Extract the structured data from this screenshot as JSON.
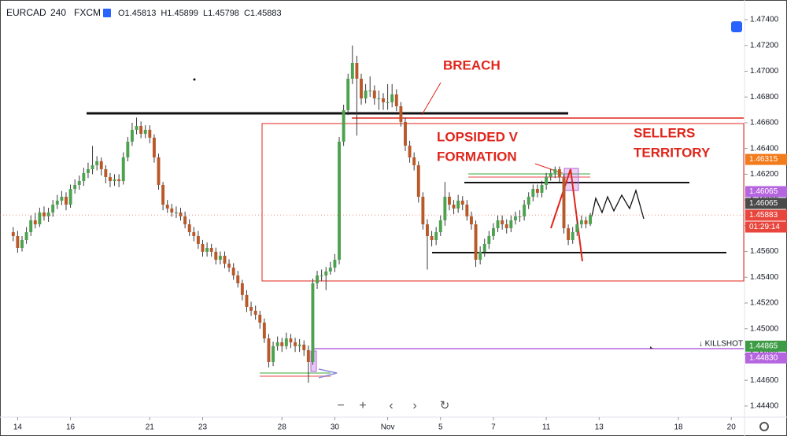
{
  "header": {
    "symbol": "EURCAD",
    "interval": "240",
    "source": "FXCM",
    "ohlc": [
      "O1.45813",
      "H1.45899",
      "L1.45798",
      "C1.45883"
    ]
  },
  "chart_data": {
    "type": "candlestick",
    "candles": [
      [
        1.4575,
        1.4579,
        1.4568,
        1.4572
      ],
      [
        1.4572,
        1.4576,
        1.4559,
        1.45628
      ],
      [
        1.45628,
        1.4572,
        1.456,
        1.45689
      ],
      [
        1.45689,
        1.4579,
        1.4566,
        1.4575
      ],
      [
        1.4575,
        1.4588,
        1.4572,
        1.45842
      ],
      [
        1.45842,
        1.459,
        1.4578,
        1.45811
      ],
      [
        1.45811,
        1.4594,
        1.4579,
        1.45903
      ],
      [
        1.45903,
        1.4595,
        1.4584,
        1.45873
      ],
      [
        1.45873,
        1.4594,
        1.4583,
        1.45903
      ],
      [
        1.45903,
        1.46,
        1.4587,
        1.45964
      ],
      [
        1.45964,
        1.4604,
        1.4593,
        1.45995
      ],
      [
        1.45995,
        1.4607,
        1.4596,
        1.46025
      ],
      [
        1.46025,
        1.4606,
        1.4592,
        1.45964
      ],
      [
        1.45964,
        1.4612,
        1.4594,
        1.46086
      ],
      [
        1.46086,
        1.4616,
        1.4605,
        1.46117
      ],
      [
        1.46117,
        1.4619,
        1.4608,
        1.46147
      ],
      [
        1.46147,
        1.4625,
        1.4611,
        1.46209
      ],
      [
        1.46209,
        1.4629,
        1.4617,
        1.46239
      ],
      [
        1.46239,
        1.4642,
        1.462,
        1.4627
      ],
      [
        1.4627,
        1.4634,
        1.4623,
        1.46301
      ],
      [
        1.46301,
        1.4633,
        1.4619,
        1.46239
      ],
      [
        1.46239,
        1.4627,
        1.4613,
        1.46178
      ],
      [
        1.46178,
        1.4621,
        1.461,
        1.46147
      ],
      [
        1.46147,
        1.462,
        1.4611,
        1.4616
      ],
      [
        1.4616,
        1.462,
        1.461,
        1.46147
      ],
      [
        1.46147,
        1.4637,
        1.4612,
        1.46331
      ],
      [
        1.46331,
        1.4649,
        1.463,
        1.46453
      ],
      [
        1.46453,
        1.466,
        1.4642,
        1.46545
      ],
      [
        1.46545,
        1.4664,
        1.4651,
        1.46575
      ],
      [
        1.46575,
        1.4661,
        1.4648,
        1.46514
      ],
      [
        1.46514,
        1.4658,
        1.4648,
        1.46545
      ],
      [
        1.46545,
        1.4658,
        1.4644,
        1.46484
      ],
      [
        1.46484,
        1.4651,
        1.4629,
        1.46331
      ],
      [
        1.46331,
        1.4636,
        1.4608,
        1.46117
      ],
      [
        1.46117,
        1.4614,
        1.4592,
        1.45964
      ],
      [
        1.45964,
        1.46,
        1.459,
        1.45934
      ],
      [
        1.45934,
        1.4597,
        1.4587,
        1.45903
      ],
      [
        1.45903,
        1.4595,
        1.4586,
        1.45903
      ],
      [
        1.45903,
        1.4594,
        1.4584,
        1.45873
      ],
      [
        1.45873,
        1.4591,
        1.4578,
        1.45811
      ],
      [
        1.45811,
        1.4585,
        1.4572,
        1.4575
      ],
      [
        1.4575,
        1.4579,
        1.4568,
        1.4572
      ],
      [
        1.4572,
        1.4576,
        1.4562,
        1.45659
      ],
      [
        1.45659,
        1.4569,
        1.4556,
        1.45598
      ],
      [
        1.45598,
        1.4567,
        1.4556,
        1.45628
      ],
      [
        1.45628,
        1.4566,
        1.4556,
        1.45598
      ],
      [
        1.45598,
        1.4563,
        1.455,
        1.45536
      ],
      [
        1.45536,
        1.456,
        1.455,
        1.45567
      ],
      [
        1.45567,
        1.456,
        1.4547,
        1.45506
      ],
      [
        1.45506,
        1.4554,
        1.4544,
        1.45475
      ],
      [
        1.45475,
        1.4551,
        1.4538,
        1.45414
      ],
      [
        1.45414,
        1.4545,
        1.4532,
        1.45353
      ],
      [
        1.45353,
        1.4538,
        1.4522,
        1.45262
      ],
      [
        1.45262,
        1.453,
        1.4513,
        1.4517
      ],
      [
        1.4517,
        1.4521,
        1.451,
        1.4514
      ],
      [
        1.4514,
        1.4518,
        1.4507,
        1.45109
      ],
      [
        1.45109,
        1.4514,
        1.45,
        1.45048
      ],
      [
        1.45048,
        1.4508,
        1.4489,
        1.44925
      ],
      [
        1.44925,
        1.4496,
        1.447,
        1.44742
      ],
      [
        1.44742,
        1.449,
        1.4471,
        1.44865
      ],
      [
        1.44865,
        1.4494,
        1.4483,
        1.44895
      ],
      [
        1.44895,
        1.4493,
        1.4482,
        1.44865
      ],
      [
        1.44865,
        1.4497,
        1.4484,
        1.44925
      ],
      [
        1.44925,
        1.4496,
        1.4485,
        1.44895
      ],
      [
        1.44895,
        1.4493,
        1.4482,
        1.44865
      ],
      [
        1.44865,
        1.4492,
        1.4482,
        1.44877
      ],
      [
        1.44877,
        1.4491,
        1.4479,
        1.44834
      ],
      [
        1.44834,
        1.4487,
        1.4458,
        1.44742
      ],
      [
        1.44742,
        1.4539,
        1.4472,
        1.45353
      ],
      [
        1.45353,
        1.4545,
        1.4531,
        1.45414
      ],
      [
        1.45414,
        1.4546,
        1.4537,
        1.45414
      ],
      [
        1.45414,
        1.4548,
        1.453,
        1.45445
      ],
      [
        1.45445,
        1.4552,
        1.4542,
        1.45475
      ],
      [
        1.45475,
        1.4558,
        1.4544,
        1.45536
      ],
      [
        1.45536,
        1.4649,
        1.455,
        1.46453
      ],
      [
        1.46453,
        1.4674,
        1.4642,
        1.46697
      ],
      [
        1.46697,
        1.4698,
        1.4666,
        1.46942
      ],
      [
        1.46942,
        1.472,
        1.469,
        1.47064
      ],
      [
        1.47064,
        1.4712,
        1.465,
        1.46942
      ],
      [
        1.46942,
        1.4698,
        1.4674,
        1.46789
      ],
      [
        1.46789,
        1.469,
        1.4675,
        1.4685
      ],
      [
        1.4685,
        1.4696,
        1.468,
        1.4685
      ],
      [
        1.4685,
        1.4689,
        1.4674,
        1.46789
      ],
      [
        1.46789,
        1.4685,
        1.467,
        1.46789
      ],
      [
        1.46789,
        1.4683,
        1.467,
        1.46759
      ],
      [
        1.46759,
        1.469,
        1.467,
        1.46759
      ],
      [
        1.46759,
        1.469,
        1.4672,
        1.4682
      ],
      [
        1.4682,
        1.4686,
        1.4669,
        1.46728
      ],
      [
        1.46728,
        1.4676,
        1.4657,
        1.46606
      ],
      [
        1.46606,
        1.4664,
        1.4638,
        1.46422
      ],
      [
        1.46422,
        1.4646,
        1.4629,
        1.46331
      ],
      [
        1.46331,
        1.4637,
        1.4623,
        1.4627
      ],
      [
        1.4627,
        1.463,
        1.4598,
        1.46025
      ],
      [
        1.46025,
        1.4606,
        1.4577,
        1.45811
      ],
      [
        1.45811,
        1.4585,
        1.4546,
        1.4572
      ],
      [
        1.4572,
        1.4576,
        1.4564,
        1.45689
      ],
      [
        1.45689,
        1.4579,
        1.4565,
        1.4575
      ],
      [
        1.4575,
        1.4588,
        1.4572,
        1.45842
      ],
      [
        1.45842,
        1.4614,
        1.458,
        1.46025
      ],
      [
        1.46025,
        1.4606,
        1.4592,
        1.45964
      ],
      [
        1.45964,
        1.46,
        1.4589,
        1.45934
      ],
      [
        1.45934,
        1.4604,
        1.459,
        1.45995
      ],
      [
        1.45995,
        1.4603,
        1.4592,
        1.45964
      ],
      [
        1.45964,
        1.46,
        1.4584,
        1.45873
      ],
      [
        1.45873,
        1.4591,
        1.4577,
        1.45811
      ],
      [
        1.45811,
        1.4584,
        1.4548,
        1.45536
      ],
      [
        1.45536,
        1.4564,
        1.455,
        1.45598
      ],
      [
        1.45598,
        1.457,
        1.4556,
        1.45659
      ],
      [
        1.45659,
        1.4576,
        1.4562,
        1.4572
      ],
      [
        1.4572,
        1.4582,
        1.4569,
        1.45781
      ],
      [
        1.45781,
        1.4588,
        1.4575,
        1.45842
      ],
      [
        1.45842,
        1.4588,
        1.4577,
        1.45811
      ],
      [
        1.45811,
        1.4585,
        1.4574,
        1.45781
      ],
      [
        1.45781,
        1.4588,
        1.4575,
        1.45842
      ],
      [
        1.45842,
        1.4591,
        1.4581,
        1.45873
      ],
      [
        1.45873,
        1.4592,
        1.4583,
        1.45873
      ],
      [
        1.45873,
        1.46,
        1.4584,
        1.45964
      ],
      [
        1.45964,
        1.4606,
        1.4593,
        1.46025
      ],
      [
        1.46025,
        1.4612,
        1.4599,
        1.46086
      ],
      [
        1.46086,
        1.4612,
        1.4602,
        1.46056
      ],
      [
        1.46056,
        1.4615,
        1.4602,
        1.46117
      ],
      [
        1.46117,
        1.4621,
        1.4608,
        1.46178
      ],
      [
        1.46178,
        1.4624,
        1.4615,
        1.46209
      ],
      [
        1.46209,
        1.4626,
        1.4617,
        1.46239
      ],
      [
        1.46239,
        1.4626,
        1.4614,
        1.46178
      ],
      [
        1.46178,
        1.462,
        1.4574,
        1.45781
      ],
      [
        1.45781,
        1.4581,
        1.4565,
        1.45689
      ],
      [
        1.45689,
        1.4579,
        1.4566,
        1.4575
      ],
      [
        1.4575,
        1.4585,
        1.4572,
        1.45811
      ],
      [
        1.45811,
        1.4588,
        1.4578,
        1.45842
      ],
      [
        1.45842,
        1.4587,
        1.4578,
        1.45813
      ],
      [
        1.45813,
        1.45899,
        1.45798,
        1.45883
      ]
    ],
    "up_color": "#4ca24f",
    "down_color": "#b9592a",
    "wick_color": "#3a3a3a",
    "xlim": [
      -3,
      166
    ],
    "xticks": [
      {
        "value": 1,
        "label": "14"
      },
      {
        "value": 13,
        "label": "16"
      },
      {
        "value": 31,
        "label": "21"
      },
      {
        "value": 43,
        "label": "23"
      },
      {
        "value": 61,
        "label": "28"
      },
      {
        "value": 73,
        "label": "30"
      },
      {
        "value": 85,
        "label": "Nov"
      },
      {
        "value": 97,
        "label": "5"
      },
      {
        "value": 109,
        "label": "7"
      },
      {
        "value": 121,
        "label": "11"
      },
      {
        "value": 133,
        "label": "13"
      },
      {
        "value": 151,
        "label": "18"
      },
      {
        "value": 163,
        "label": "20"
      }
    ],
    "ylim": [
      1.44314,
      1.47553
    ],
    "yticks": [
      {
        "value": 1.444,
        "label": "1.44400"
      },
      {
        "value": 1.446,
        "label": "1.44600"
      },
      {
        "value": 1.448,
        "label": "1.44800"
      },
      {
        "value": 1.45,
        "label": "1.45000"
      },
      {
        "value": 1.452,
        "label": "1.45200"
      },
      {
        "value": 1.454,
        "label": "1.45400"
      },
      {
        "value": 1.456,
        "label": "1.45600"
      },
      {
        "value": 1.458,
        "label": "1.45800"
      },
      {
        "value": 1.46,
        "label": "1.46000"
      },
      {
        "value": 1.462,
        "label": "1.46200"
      },
      {
        "value": 1.464,
        "label": "1.46400"
      },
      {
        "value": 1.466,
        "label": "1.46600"
      },
      {
        "value": 1.468,
        "label": "1.46800"
      },
      {
        "value": 1.47,
        "label": "1.47000"
      },
      {
        "value": 1.472,
        "label": "1.47200"
      },
      {
        "value": 1.474,
        "label": "1.47400"
      }
    ],
    "price_labels": [
      {
        "value": 1.46315,
        "label": "1.46315",
        "color": "#f27b1c"
      },
      {
        "value": 1.46065,
        "label": "1.46065",
        "color": "#b565df"
      },
      {
        "value": 1.46065,
        "label": "1.46065",
        "color": "#4a4a4a"
      },
      {
        "value": 1.45883,
        "label": "1.45883",
        "color": "#e8453c"
      },
      {
        "value": 1.44865,
        "label": "1.44865",
        "color": "#3e9b45"
      },
      {
        "value": 1.4483,
        "label": "1.44830",
        "color": "#b565df"
      }
    ],
    "countdown": "01:29:14",
    "annotations": {
      "breach": "BREACH",
      "lopsided": [
        "LOPSIDED V",
        "FORMATION"
      ],
      "sellers": [
        "SELLERS",
        "TERRITORY"
      ],
      "killshot": "↓ KILLSHOT"
    }
  }
}
